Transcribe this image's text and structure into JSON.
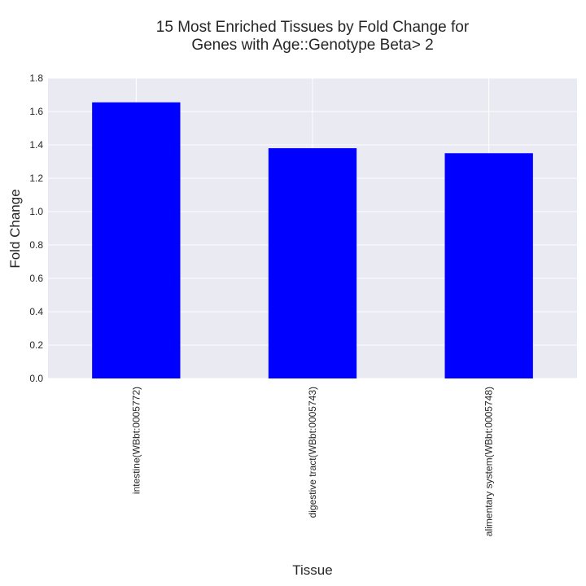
{
  "chart_data": {
    "type": "bar",
    "title_lines": [
      "15 Most Enriched Tissues by Fold Change for",
      "Genes with Age::Genotype Beta> 2"
    ],
    "xlabel": "Tissue",
    "ylabel": "Fold Change",
    "categories": [
      "intestine(WBbt:0005772)",
      "digestive tract(WBbt:0005743)",
      "alimentary system(WBbt:0005748)"
    ],
    "values": [
      1.655,
      1.38,
      1.35
    ],
    "ylim": [
      0,
      1.8
    ],
    "yticks": [
      "0.0",
      "0.2",
      "0.4",
      "0.6",
      "0.8",
      "1.0",
      "1.2",
      "1.4",
      "1.6",
      "1.8"
    ],
    "grid": true,
    "legend": "none",
    "colors": {
      "bar": "#0000ff",
      "plot_background": "#eaeaf2",
      "grid": "#ffffff",
      "text": "#262626"
    }
  }
}
